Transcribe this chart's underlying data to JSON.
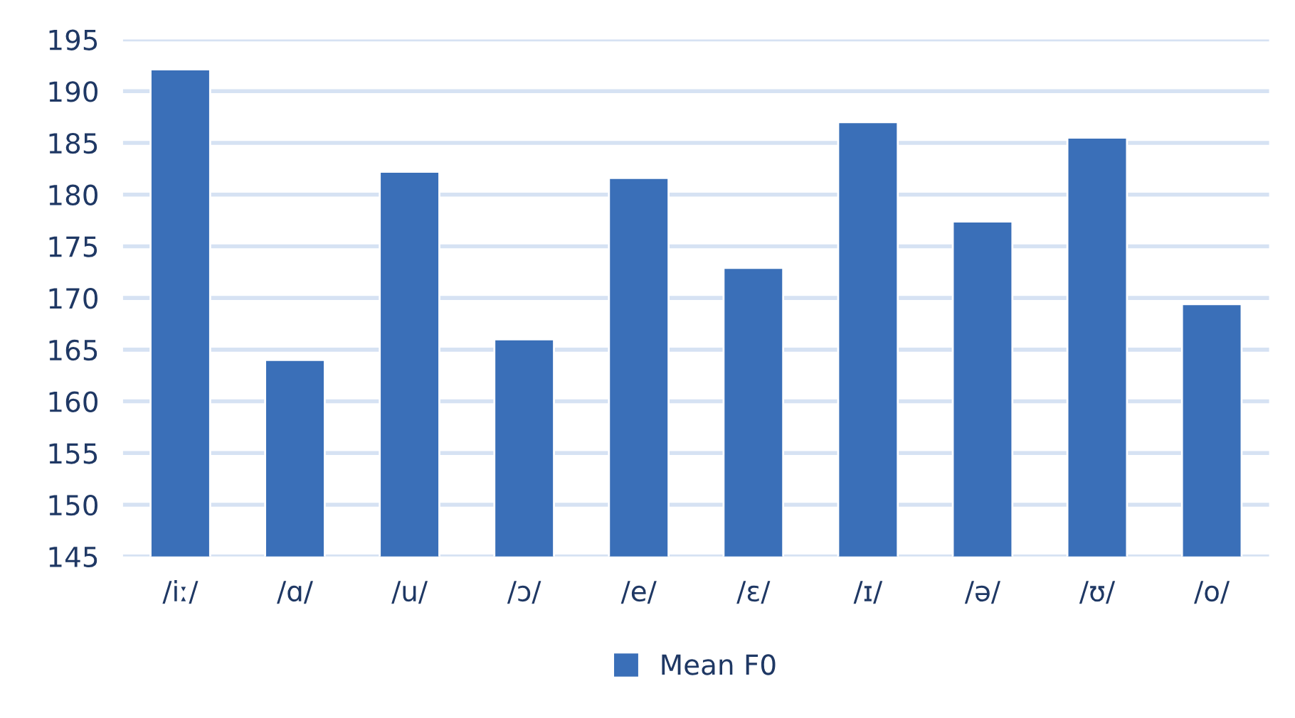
{
  "chart_data": {
    "type": "bar",
    "categories": [
      "/iː/",
      "/ɑ/",
      "/u/",
      "/ɔ/",
      "/e/",
      "/ɛ/",
      "/ɪ/",
      "/ə/",
      "/ʊ/",
      "/o/"
    ],
    "series": [
      {
        "name": "Mean F0",
        "color": "#3a6fb8",
        "values": [
          192.1,
          164.0,
          182.2,
          166.0,
          181.6,
          172.9,
          187.0,
          177.4,
          185.5,
          169.4
        ]
      }
    ],
    "ylim": [
      145,
      195
    ],
    "yticks": [
      145,
      150,
      155,
      160,
      165,
      170,
      175,
      180,
      185,
      190,
      195
    ],
    "grid": "y",
    "legend": "bottom"
  }
}
